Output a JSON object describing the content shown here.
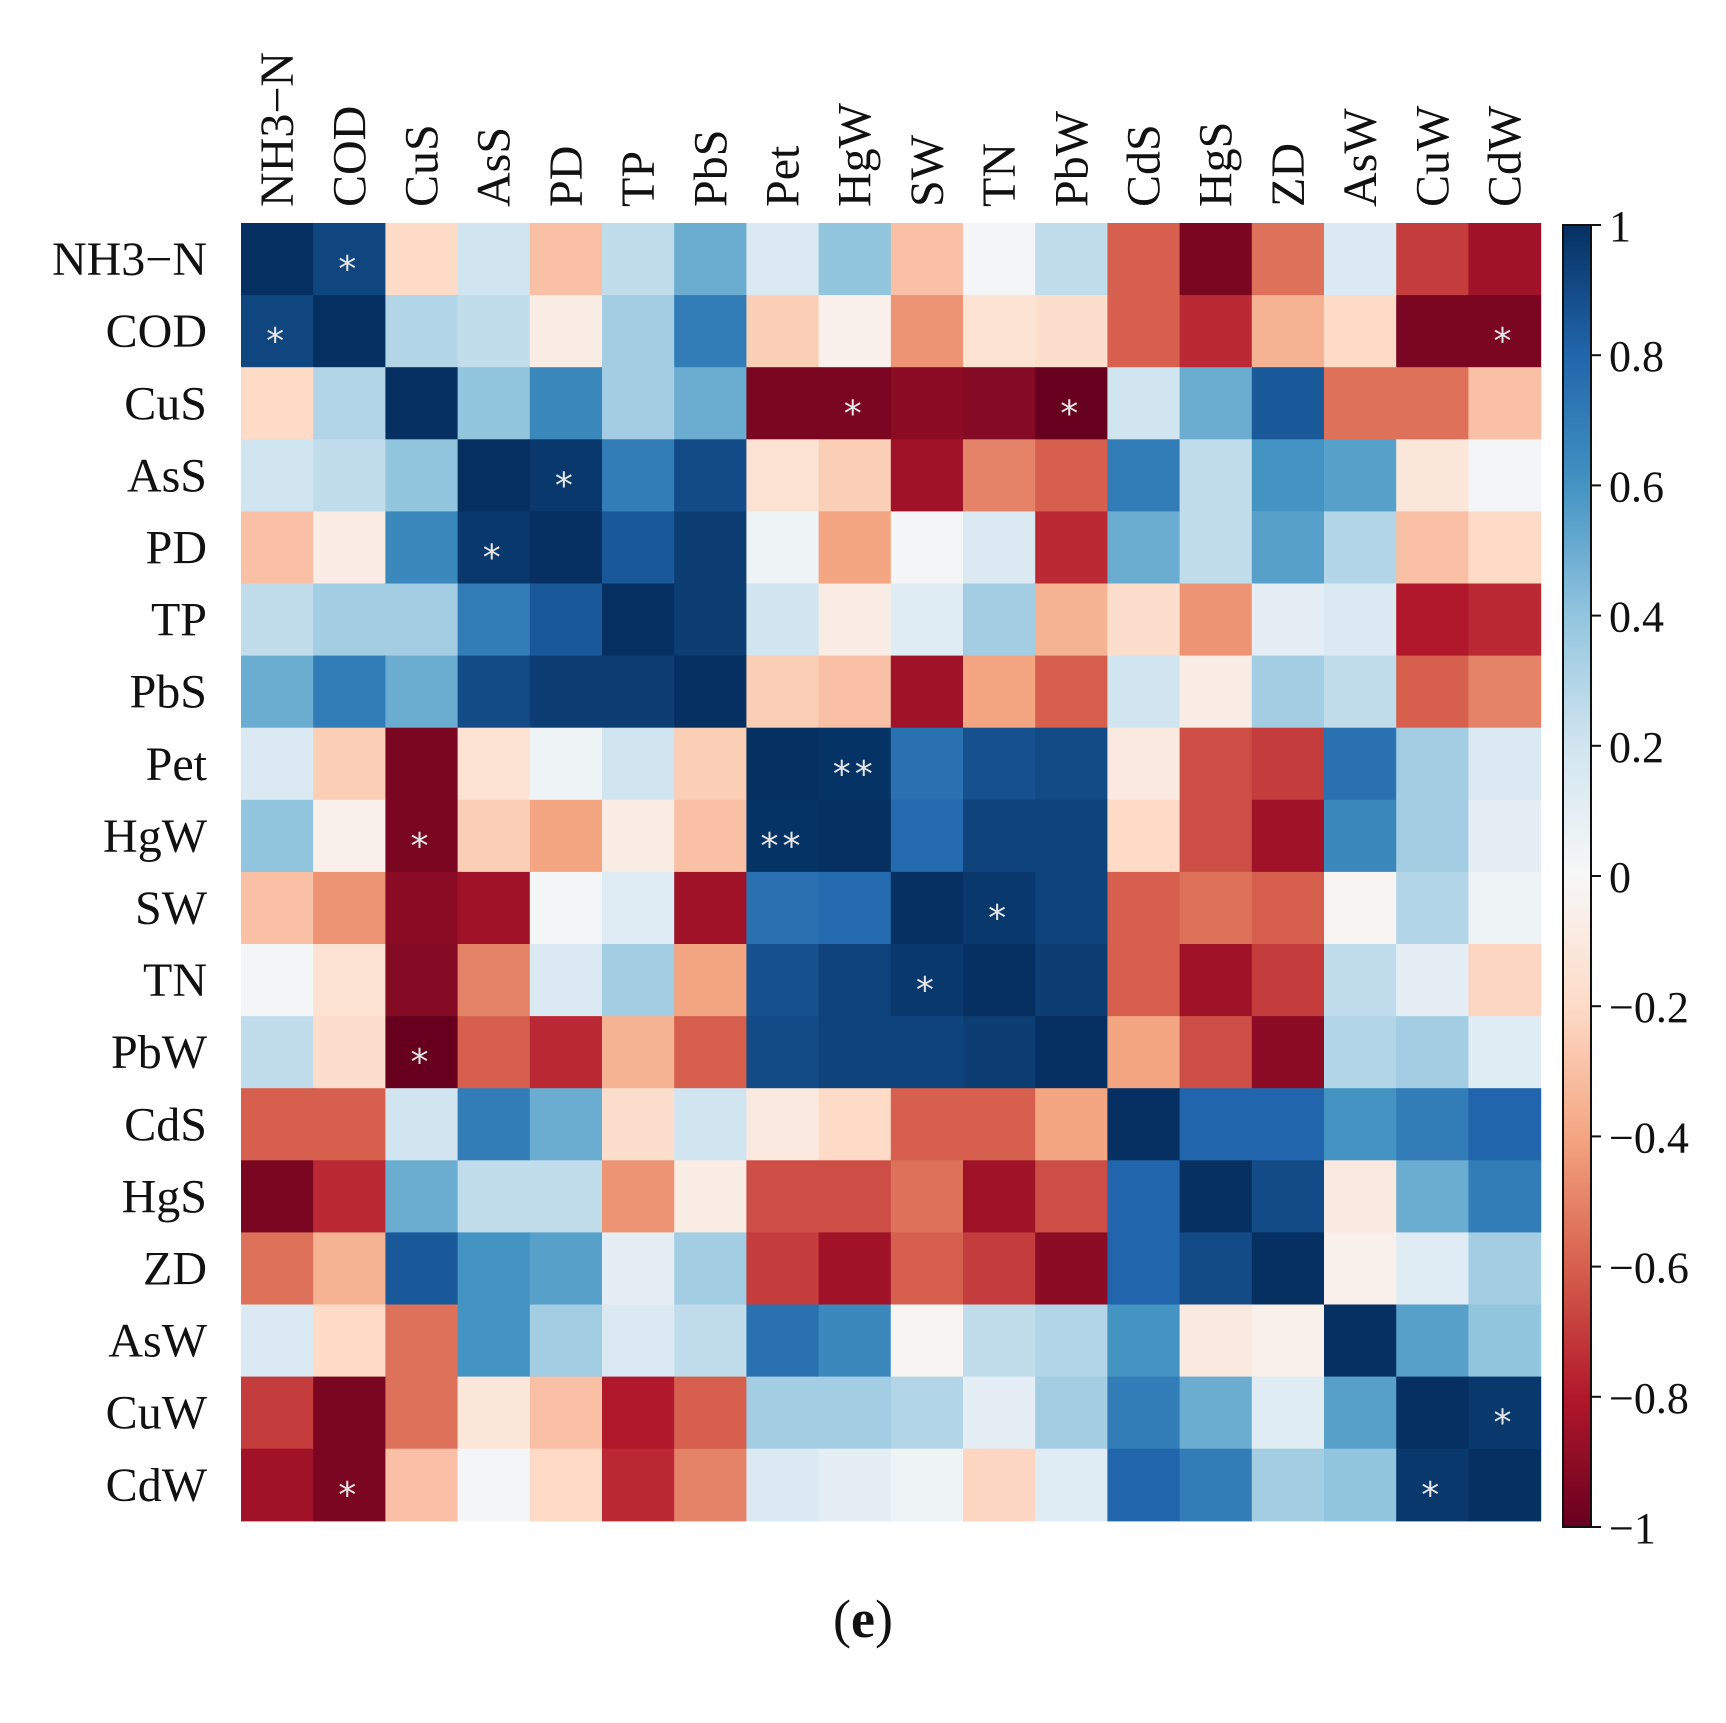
{
  "chart_data": {
    "type": "heatmap",
    "title": "",
    "variables": [
      "NH3−N",
      "COD",
      "CuS",
      "AsS",
      "PD",
      "TP",
      "PbS",
      "Pet",
      "HgW",
      "SW",
      "TN",
      "PbW",
      "CdS",
      "HgS",
      "ZD",
      "AsW",
      "CuW",
      "CdW"
    ],
    "matrix": [
      [
        1.0,
        0.92,
        -0.2,
        0.2,
        -0.3,
        0.25,
        0.5,
        0.15,
        0.4,
        -0.3,
        0.02,
        0.25,
        -0.6,
        -0.95,
        -0.55,
        0.15,
        -0.7,
        -0.85
      ],
      [
        0.92,
        1.0,
        0.3,
        0.25,
        -0.08,
        0.35,
        0.7,
        -0.25,
        -0.05,
        -0.45,
        -0.15,
        -0.18,
        -0.6,
        -0.75,
        -0.35,
        -0.2,
        -0.95,
        -0.95
      ],
      [
        -0.2,
        0.3,
        1.0,
        0.4,
        0.65,
        0.35,
        0.5,
        -0.95,
        -0.95,
        -0.9,
        -0.92,
        -1.0,
        0.2,
        0.5,
        0.85,
        -0.55,
        -0.55,
        -0.3
      ],
      [
        0.2,
        0.25,
        0.4,
        1.0,
        0.97,
        0.7,
        0.9,
        -0.15,
        -0.25,
        -0.85,
        -0.5,
        -0.6,
        0.7,
        0.25,
        0.6,
        0.55,
        -0.12,
        0.02
      ],
      [
        -0.3,
        -0.08,
        0.65,
        0.97,
        1.0,
        0.85,
        0.95,
        0.05,
        -0.4,
        0.02,
        0.15,
        -0.75,
        0.5,
        0.25,
        0.55,
        0.3,
        -0.3,
        -0.2
      ],
      [
        0.25,
        0.35,
        0.35,
        0.7,
        0.85,
        1.0,
        0.95,
        0.2,
        -0.08,
        0.12,
        0.35,
        -0.35,
        -0.18,
        -0.45,
        0.1,
        0.15,
        -0.8,
        -0.75
      ],
      [
        0.5,
        0.7,
        0.5,
        0.9,
        0.95,
        0.95,
        1.0,
        -0.25,
        -0.3,
        -0.85,
        -0.4,
        -0.6,
        0.2,
        -0.08,
        0.35,
        0.25,
        -0.6,
        -0.5
      ],
      [
        0.15,
        -0.25,
        -0.95,
        -0.15,
        0.05,
        0.2,
        -0.25,
        1.0,
        0.99,
        0.75,
        0.88,
        0.9,
        -0.1,
        -0.65,
        -0.7,
        0.75,
        0.35,
        0.15
      ],
      [
        0.4,
        -0.05,
        -0.95,
        -0.25,
        -0.4,
        -0.08,
        -0.3,
        0.99,
        1.0,
        0.78,
        0.93,
        0.93,
        -0.2,
        -0.65,
        -0.85,
        0.65,
        0.35,
        0.1
      ],
      [
        -0.3,
        -0.45,
        -0.9,
        -0.85,
        0.02,
        0.12,
        -0.85,
        0.75,
        0.78,
        1.0,
        0.97,
        0.93,
        -0.6,
        -0.55,
        -0.6,
        -0.02,
        0.3,
        0.05
      ],
      [
        0.02,
        -0.15,
        -0.92,
        -0.5,
        0.15,
        0.35,
        -0.4,
        0.88,
        0.93,
        0.97,
        1.0,
        0.95,
        -0.6,
        -0.85,
        -0.7,
        0.25,
        0.1,
        -0.22
      ],
      [
        0.25,
        -0.18,
        -1.0,
        -0.6,
        -0.75,
        -0.35,
        -0.6,
        0.9,
        0.93,
        0.93,
        0.95,
        1.0,
        -0.4,
        -0.65,
        -0.9,
        0.3,
        0.35,
        0.12
      ],
      [
        -0.6,
        -0.6,
        0.2,
        0.7,
        0.5,
        -0.18,
        0.2,
        -0.1,
        -0.2,
        -0.6,
        -0.6,
        -0.4,
        1.0,
        0.8,
        0.8,
        0.6,
        0.7,
        0.8
      ],
      [
        -0.95,
        -0.75,
        0.5,
        0.25,
        0.25,
        -0.45,
        -0.08,
        -0.65,
        -0.65,
        -0.55,
        -0.85,
        -0.65,
        0.8,
        1.0,
        0.9,
        -0.1,
        0.5,
        0.7
      ],
      [
        -0.55,
        -0.35,
        0.85,
        0.6,
        0.55,
        0.1,
        0.35,
        -0.7,
        -0.85,
        -0.6,
        -0.7,
        -0.9,
        0.8,
        0.9,
        1.0,
        -0.05,
        0.12,
        0.35
      ],
      [
        0.15,
        -0.2,
        -0.55,
        0.6,
        0.35,
        0.15,
        0.25,
        0.75,
        0.65,
        -0.02,
        0.25,
        0.3,
        0.6,
        -0.1,
        -0.05,
        1.0,
        0.55,
        0.4
      ],
      [
        -0.7,
        -0.95,
        -0.55,
        -0.12,
        -0.3,
        -0.8,
        -0.6,
        0.35,
        0.35,
        0.3,
        0.1,
        0.35,
        0.7,
        0.5,
        0.12,
        0.55,
        1.0,
        0.97
      ],
      [
        -0.85,
        -0.95,
        -0.3,
        0.02,
        -0.2,
        -0.75,
        -0.5,
        0.15,
        0.1,
        0.05,
        -0.22,
        0.12,
        0.8,
        0.7,
        0.35,
        0.4,
        0.97,
        1.0
      ]
    ],
    "significance": [
      {
        "row": 0,
        "col": 1,
        "mark": "*"
      },
      {
        "row": 1,
        "col": 0,
        "mark": "*"
      },
      {
        "row": 1,
        "col": 17,
        "mark": "*"
      },
      {
        "row": 2,
        "col": 8,
        "mark": "*"
      },
      {
        "row": 2,
        "col": 11,
        "mark": "*"
      },
      {
        "row": 3,
        "col": 4,
        "mark": "*"
      },
      {
        "row": 4,
        "col": 3,
        "mark": "*"
      },
      {
        "row": 7,
        "col": 8,
        "mark": "**"
      },
      {
        "row": 8,
        "col": 2,
        "mark": "*"
      },
      {
        "row": 8,
        "col": 7,
        "mark": "**"
      },
      {
        "row": 9,
        "col": 10,
        "mark": "*"
      },
      {
        "row": 10,
        "col": 9,
        "mark": "*"
      },
      {
        "row": 11,
        "col": 2,
        "mark": "*"
      },
      {
        "row": 16,
        "col": 17,
        "mark": "*"
      },
      {
        "row": 17,
        "col": 1,
        "mark": "*"
      },
      {
        "row": 17,
        "col": 16,
        "mark": "*"
      }
    ],
    "colorbar": {
      "range": [
        -1,
        1
      ],
      "ticks": [
        1,
        0.8,
        0.6,
        0.4,
        0.2,
        0,
        -0.2,
        -0.4,
        -0.6,
        -0.8,
        -1
      ],
      "tick_labels": [
        "1",
        "0.8",
        "0.6",
        "0.4",
        "0.2",
        "0",
        "−0.2",
        "−0.4",
        "−0.6",
        "−0.8",
        "−1"
      ],
      "colormap": "RdBu",
      "stops": [
        "#67001f",
        "#b2182b",
        "#d6604d",
        "#f4a582",
        "#fddbc7",
        "#f7f7f7",
        "#d1e5f0",
        "#92c5de",
        "#4393c3",
        "#2166ac",
        "#053061"
      ]
    }
  },
  "caption": {
    "open": "(",
    "letter": "e",
    "close": ")"
  }
}
